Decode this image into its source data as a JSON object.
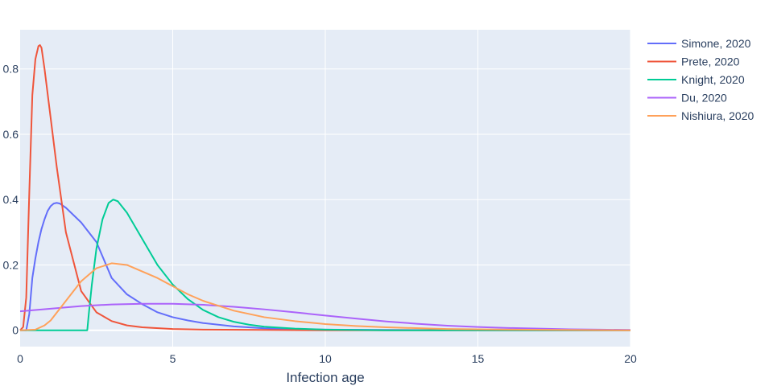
{
  "chart_data": {
    "type": "line",
    "title": "",
    "xlabel": "Infection age",
    "ylabel": "",
    "xlim": [
      0,
      20
    ],
    "ylim": [
      -0.05,
      0.92
    ],
    "x_ticks": [
      0,
      5,
      10,
      15,
      20
    ],
    "y_ticks": [
      0,
      0.2,
      0.4,
      0.6,
      0.8
    ],
    "x_tick_labels": [
      "0",
      "5",
      "10",
      "15",
      "20"
    ],
    "y_tick_labels": [
      "0",
      "0.2",
      "0.4",
      "0.6",
      "0.8"
    ],
    "grid": true,
    "legend_position": "top-right",
    "background": "#e5ecf6",
    "series": [
      {
        "name": "Simone, 2020",
        "color": "#636efa",
        "points": [
          [
            0,
            0
          ],
          [
            0.2,
            0
          ],
          [
            0.3,
            0.05
          ],
          [
            0.4,
            0.16
          ],
          [
            0.5,
            0.22
          ],
          [
            0.6,
            0.27
          ],
          [
            0.7,
            0.31
          ],
          [
            0.8,
            0.34
          ],
          [
            0.9,
            0.365
          ],
          [
            1.0,
            0.38
          ],
          [
            1.1,
            0.388
          ],
          [
            1.2,
            0.39
          ],
          [
            1.3,
            0.388
          ],
          [
            1.5,
            0.375
          ],
          [
            2.0,
            0.33
          ],
          [
            2.5,
            0.27
          ],
          [
            3.0,
            0.16
          ],
          [
            3.5,
            0.11
          ],
          [
            4.0,
            0.08
          ],
          [
            4.5,
            0.055
          ],
          [
            5.0,
            0.04
          ],
          [
            5.5,
            0.03
          ],
          [
            6.0,
            0.022
          ],
          [
            7.0,
            0.012
          ],
          [
            8.0,
            0.006
          ],
          [
            9.0,
            0.003
          ],
          [
            10.0,
            0.002
          ],
          [
            12.0,
            0.001
          ],
          [
            15.0,
            0.0
          ],
          [
            20.0,
            0.0
          ]
        ]
      },
      {
        "name": "Prete, 2020",
        "color": "#ef553b",
        "points": [
          [
            0,
            0
          ],
          [
            0.1,
            0.01
          ],
          [
            0.2,
            0.1
          ],
          [
            0.3,
            0.42
          ],
          [
            0.4,
            0.72
          ],
          [
            0.5,
            0.83
          ],
          [
            0.6,
            0.87
          ],
          [
            0.65,
            0.873
          ],
          [
            0.7,
            0.865
          ],
          [
            0.8,
            0.8
          ],
          [
            1.0,
            0.65
          ],
          [
            1.2,
            0.5
          ],
          [
            1.5,
            0.3
          ],
          [
            2.0,
            0.12
          ],
          [
            2.5,
            0.055
          ],
          [
            3.0,
            0.028
          ],
          [
            3.5,
            0.015
          ],
          [
            4.0,
            0.009
          ],
          [
            5.0,
            0.004
          ],
          [
            6.0,
            0.002
          ],
          [
            8.0,
            0.001
          ],
          [
            10.0,
            0.0
          ],
          [
            20.0,
            0.0
          ]
        ]
      },
      {
        "name": "Knight, 2020",
        "color": "#00cc96",
        "points": [
          [
            0,
            0
          ],
          [
            2.2,
            0
          ],
          [
            2.25,
            0.05
          ],
          [
            2.35,
            0.14
          ],
          [
            2.5,
            0.25
          ],
          [
            2.7,
            0.34
          ],
          [
            2.9,
            0.39
          ],
          [
            3.05,
            0.4
          ],
          [
            3.2,
            0.395
          ],
          [
            3.5,
            0.36
          ],
          [
            4.0,
            0.28
          ],
          [
            4.5,
            0.2
          ],
          [
            5.0,
            0.14
          ],
          [
            5.5,
            0.095
          ],
          [
            6.0,
            0.062
          ],
          [
            6.5,
            0.04
          ],
          [
            7.0,
            0.026
          ],
          [
            7.5,
            0.017
          ],
          [
            8.0,
            0.011
          ],
          [
            9.0,
            0.005
          ],
          [
            10.0,
            0.002
          ],
          [
            12.0,
            0.0
          ],
          [
            20.0,
            0.0
          ]
        ]
      },
      {
        "name": "Du, 2020",
        "color": "#ab63fa",
        "points": [
          [
            0,
            0.058
          ],
          [
            1,
            0.066
          ],
          [
            2,
            0.074
          ],
          [
            3,
            0.079
          ],
          [
            4,
            0.081
          ],
          [
            5,
            0.081
          ],
          [
            6,
            0.078
          ],
          [
            7,
            0.072
          ],
          [
            8,
            0.064
          ],
          [
            9,
            0.055
          ],
          [
            10,
            0.045
          ],
          [
            11,
            0.036
          ],
          [
            12,
            0.027
          ],
          [
            13,
            0.02
          ],
          [
            14,
            0.014
          ],
          [
            15,
            0.01
          ],
          [
            16,
            0.007
          ],
          [
            17,
            0.005
          ],
          [
            18,
            0.003
          ],
          [
            19,
            0.002
          ],
          [
            20,
            0.001
          ]
        ]
      },
      {
        "name": "Nishiura, 2020",
        "color": "#ffa15a",
        "points": [
          [
            0,
            0
          ],
          [
            0.5,
            0.002
          ],
          [
            0.8,
            0.015
          ],
          [
            1.0,
            0.03
          ],
          [
            1.5,
            0.09
          ],
          [
            2.0,
            0.15
          ],
          [
            2.5,
            0.19
          ],
          [
            3.0,
            0.205
          ],
          [
            3.5,
            0.2
          ],
          [
            4.0,
            0.18
          ],
          [
            4.5,
            0.16
          ],
          [
            5.0,
            0.135
          ],
          [
            5.5,
            0.11
          ],
          [
            6.0,
            0.09
          ],
          [
            7.0,
            0.06
          ],
          [
            8.0,
            0.04
          ],
          [
            9.0,
            0.028
          ],
          [
            10.0,
            0.019
          ],
          [
            11.0,
            0.013
          ],
          [
            12.0,
            0.009
          ],
          [
            14.0,
            0.004
          ],
          [
            16.0,
            0.002
          ],
          [
            20.0,
            0.0
          ]
        ]
      }
    ]
  }
}
